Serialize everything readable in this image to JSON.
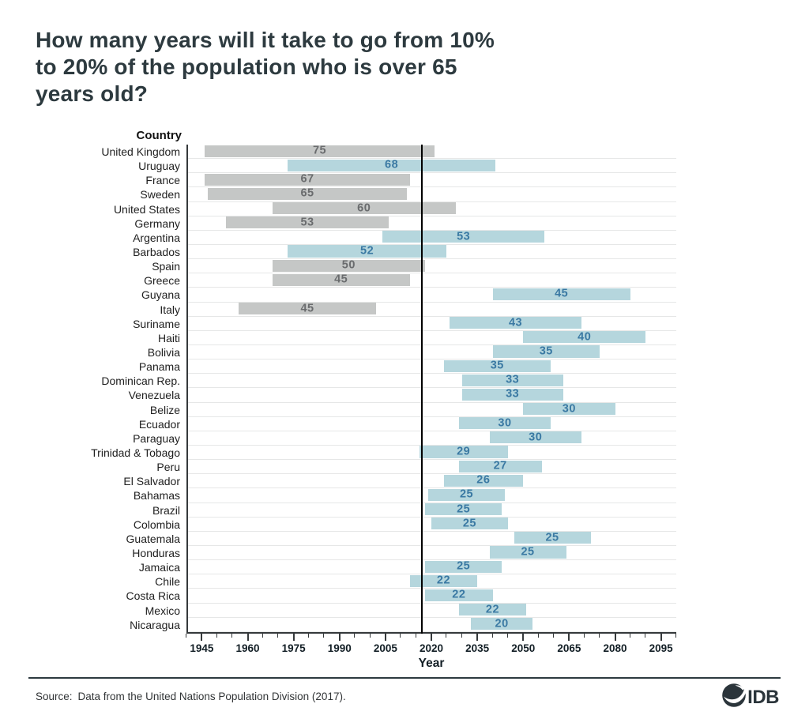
{
  "title": "How many years will it take to go from 10% to 20% of the population who is over 65 years old?",
  "chart_data": {
    "type": "bar",
    "orientation": "horizontal-range",
    "column_header": "Country",
    "xlabel": "Year",
    "x_min": 1940,
    "x_max": 2100,
    "x_major_tick_start": 1945,
    "x_major_tick_step": 15,
    "x_minor_tick_step": 5,
    "x_major_ticks": [
      1945,
      1960,
      1975,
      1990,
      2005,
      2020,
      2035,
      2050,
      2065,
      2080,
      2095
    ],
    "reference_line_year": 2017,
    "grid": "horizontal",
    "series_colors": {
      "europe_na": "#c5c7c6",
      "latam_caribbean": "#b5d6dd"
    },
    "value_colors": {
      "europe_na": "#6a6c6e",
      "latam_caribbean": "#3a79a3"
    },
    "rows": [
      {
        "country": "United Kingdom",
        "years": 75,
        "start": 1946,
        "end": 2021,
        "group": "europe_na"
      },
      {
        "country": "Uruguay",
        "years": 68,
        "start": 1973,
        "end": 2041,
        "group": "latam_caribbean"
      },
      {
        "country": "France",
        "years": 67,
        "start": 1946,
        "end": 2013,
        "group": "europe_na"
      },
      {
        "country": "Sweden",
        "years": 65,
        "start": 1947,
        "end": 2012,
        "group": "europe_na"
      },
      {
        "country": "United States",
        "years": 60,
        "start": 1968,
        "end": 2028,
        "group": "europe_na"
      },
      {
        "country": "Germany",
        "years": 53,
        "start": 1953,
        "end": 2006,
        "group": "europe_na"
      },
      {
        "country": "Argentina",
        "years": 53,
        "start": 2004,
        "end": 2057,
        "group": "latam_caribbean"
      },
      {
        "country": "Barbados",
        "years": 52,
        "start": 1973,
        "end": 2025,
        "group": "latam_caribbean"
      },
      {
        "country": "Spain",
        "years": 50,
        "start": 1968,
        "end": 2018,
        "group": "europe_na"
      },
      {
        "country": "Greece",
        "years": 45,
        "start": 1968,
        "end": 2013,
        "group": "europe_na"
      },
      {
        "country": "Guyana",
        "years": 45,
        "start": 2040,
        "end": 2085,
        "group": "latam_caribbean"
      },
      {
        "country": "Italy",
        "years": 45,
        "start": 1957,
        "end": 2002,
        "group": "europe_na"
      },
      {
        "country": "Suriname",
        "years": 43,
        "start": 2026,
        "end": 2069,
        "group": "latam_caribbean"
      },
      {
        "country": "Haiti",
        "years": 40,
        "start": 2050,
        "end": 2090,
        "group": "latam_caribbean"
      },
      {
        "country": "Bolivia",
        "years": 35,
        "start": 2040,
        "end": 2075,
        "group": "latam_caribbean"
      },
      {
        "country": "Panama",
        "years": 35,
        "start": 2024,
        "end": 2059,
        "group": "latam_caribbean"
      },
      {
        "country": "Dominican Rep.",
        "years": 33,
        "start": 2030,
        "end": 2063,
        "group": "latam_caribbean"
      },
      {
        "country": "Venezuela",
        "years": 33,
        "start": 2030,
        "end": 2063,
        "group": "latam_caribbean"
      },
      {
        "country": "Belize",
        "years": 30,
        "start": 2050,
        "end": 2080,
        "group": "latam_caribbean"
      },
      {
        "country": "Ecuador",
        "years": 30,
        "start": 2029,
        "end": 2059,
        "group": "latam_caribbean"
      },
      {
        "country": "Paraguay",
        "years": 30,
        "start": 2039,
        "end": 2069,
        "group": "latam_caribbean"
      },
      {
        "country": "Trinidad & Tobago",
        "years": 29,
        "start": 2016,
        "end": 2045,
        "group": "latam_caribbean"
      },
      {
        "country": "Peru",
        "years": 27,
        "start": 2029,
        "end": 2056,
        "group": "latam_caribbean"
      },
      {
        "country": "El Salvador",
        "years": 26,
        "start": 2024,
        "end": 2050,
        "group": "latam_caribbean"
      },
      {
        "country": "Bahamas",
        "years": 25,
        "start": 2019,
        "end": 2044,
        "group": "latam_caribbean"
      },
      {
        "country": "Brazil",
        "years": 25,
        "start": 2018,
        "end": 2043,
        "group": "latam_caribbean"
      },
      {
        "country": "Colombia",
        "years": 25,
        "start": 2020,
        "end": 2045,
        "group": "latam_caribbean"
      },
      {
        "country": "Guatemala",
        "years": 25,
        "start": 2047,
        "end": 2072,
        "group": "latam_caribbean"
      },
      {
        "country": "Honduras",
        "years": 25,
        "start": 2039,
        "end": 2064,
        "group": "latam_caribbean"
      },
      {
        "country": "Jamaica",
        "years": 25,
        "start": 2018,
        "end": 2043,
        "group": "latam_caribbean"
      },
      {
        "country": "Chile",
        "years": 22,
        "start": 2013,
        "end": 2035,
        "group": "latam_caribbean"
      },
      {
        "country": "Costa Rica",
        "years": 22,
        "start": 2018,
        "end": 2040,
        "group": "latam_caribbean"
      },
      {
        "country": "Mexico",
        "years": 22,
        "start": 2029,
        "end": 2051,
        "group": "latam_caribbean"
      },
      {
        "country": "Nicaragua",
        "years": 20,
        "start": 2033,
        "end": 2053,
        "group": "latam_caribbean"
      }
    ]
  },
  "source": {
    "label": "Source:",
    "text": "Data from the United Nations Population Division (2017)."
  },
  "logo": {
    "text": "IDB",
    "color": "#2b353b"
  }
}
